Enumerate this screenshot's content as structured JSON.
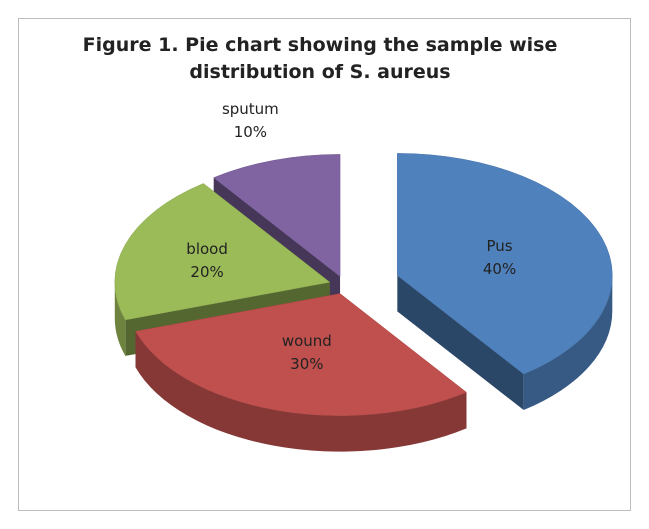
{
  "chart_data": {
    "type": "pie",
    "title": "Figure 1. Pie chart showing the sample wise distribution of S. aureus",
    "categories": [
      "Pus",
      "wound",
      "blood",
      "sputum"
    ],
    "values": [
      40,
      30,
      20,
      10
    ],
    "value_labels": [
      "40%",
      "30%",
      "20%",
      "10%"
    ],
    "colors": [
      "#4f81bd",
      "#c0504d",
      "#9bbb59",
      "#8064a2"
    ]
  }
}
